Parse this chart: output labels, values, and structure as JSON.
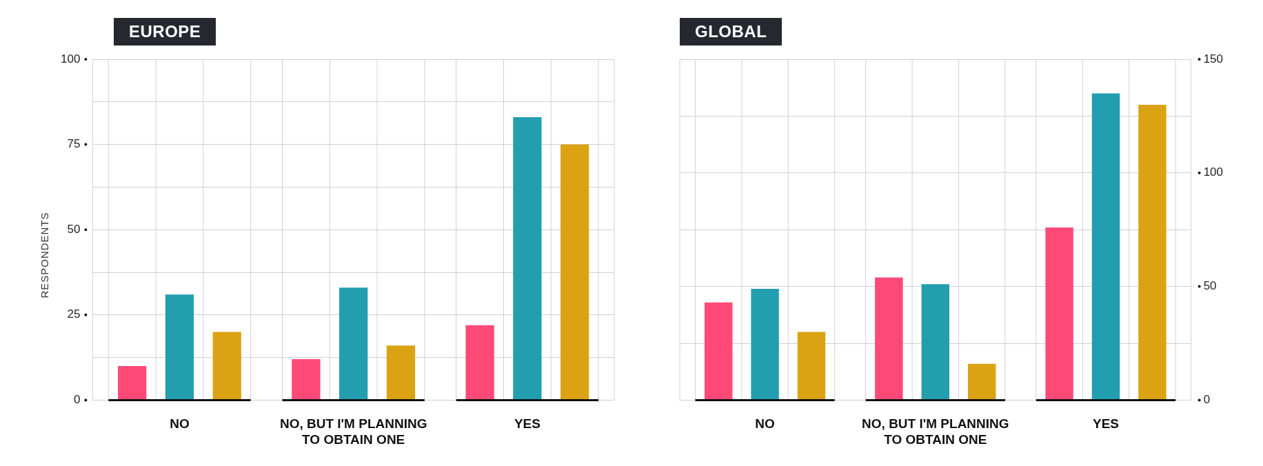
{
  "chart_data": [
    {
      "type": "bar",
      "title": "EUROPE",
      "ylabel": "RESPONDENTS",
      "categories": [
        "NO",
        "NO, BUT I'M PLANNING TO OBTAIN ONE",
        "YES"
      ],
      "series": [
        {
          "color": "#ff4a78",
          "values": [
            10,
            12,
            22
          ]
        },
        {
          "color": "#229eae",
          "values": [
            31,
            33,
            83
          ]
        },
        {
          "color": "#dba314",
          "values": [
            20,
            16,
            75
          ]
        }
      ],
      "ylim": [
        0,
        100
      ],
      "yticks": [
        0,
        {
          "value": 12.5,
          "label": null
        },
        25,
        {
          "value": 37.5,
          "label": null
        },
        50,
        {
          "value": 62.5,
          "label": null
        },
        75,
        {
          "value": 87.5,
          "label": null
        },
        100
      ],
      "grid": true,
      "legend": false
    },
    {
      "type": "bar",
      "title": "GLOBAL",
      "categories": [
        "NO",
        "NO, BUT I'M PLANNING TO OBTAIN ONE",
        "YES"
      ],
      "series": [
        {
          "color": "#ff4a78",
          "values": [
            43,
            54,
            76
          ],
          "axis": "y2"
        },
        {
          "color": "#229eae",
          "values": [
            49,
            51,
            135
          ],
          "axis": "y2"
        },
        {
          "color": "#dba314",
          "values": [
            30,
            16,
            130
          ],
          "axis": "y2"
        }
      ],
      "y2lim": [
        0,
        150
      ],
      "y2ticks": [
        0,
        {
          "value": 25,
          "label": null
        },
        50,
        {
          "value": 75,
          "label": null
        },
        100,
        {
          "value": 125,
          "label": null
        },
        150
      ],
      "grid": true,
      "legend": false
    }
  ]
}
